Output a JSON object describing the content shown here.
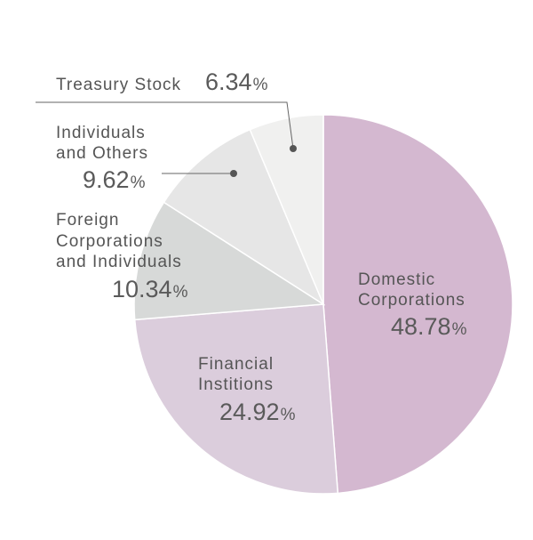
{
  "chart_data": {
    "type": "pie",
    "title": "",
    "start_angle_deg": 0,
    "direction": "clockwise",
    "slices": [
      {
        "label_lines": [
          "Domestic",
          "Corporations"
        ],
        "value": 48.78,
        "value_text": "48.78",
        "unit": "%",
        "color": "#d4b8d0"
      },
      {
        "label_lines": [
          "Financial",
          "Institions"
        ],
        "value": 24.92,
        "value_text": "24.92",
        "unit": "%",
        "color": "#dbcddc"
      },
      {
        "label_lines": [
          "Foreign",
          "Corporations",
          "and Individuals"
        ],
        "value": 10.34,
        "value_text": "10.34",
        "unit": "%",
        "color": "#d7d9d8"
      },
      {
        "label_lines": [
          "Individuals",
          "and Others"
        ],
        "value": 9.62,
        "value_text": "9.62",
        "unit": "%",
        "color": "#e6e6e6"
      },
      {
        "label_lines": [
          "Treasury Stock"
        ],
        "value": 6.34,
        "value_text": "6.34",
        "unit": "%",
        "color": "#f0f0ef"
      }
    ],
    "slice_border_color": "#ffffff",
    "leader_line_color": "#666666"
  }
}
